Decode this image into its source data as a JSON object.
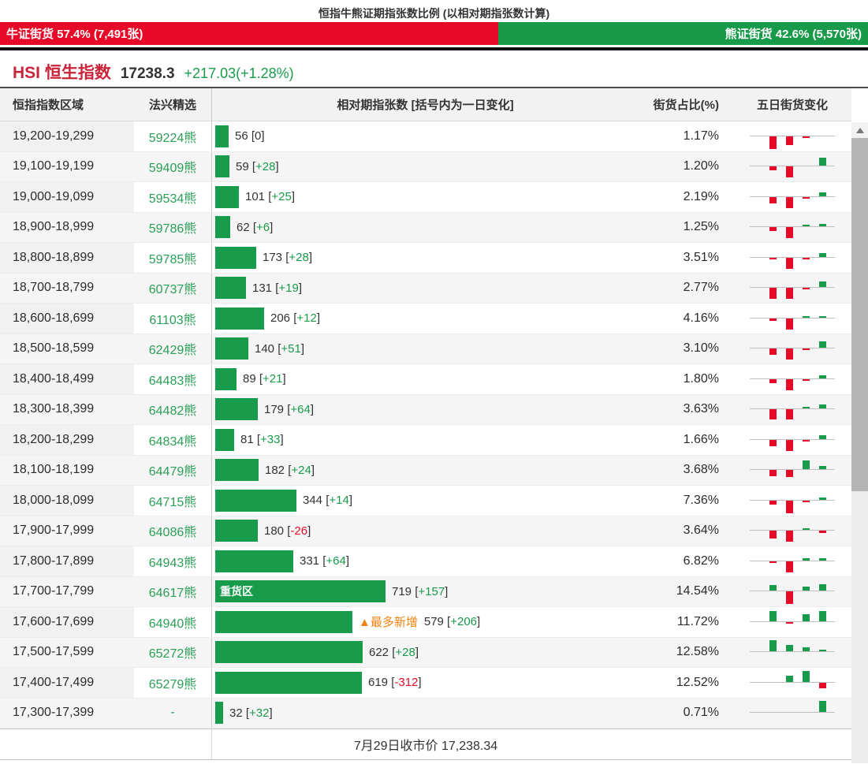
{
  "title": "恒指牛熊证期指张数比例 (以相对期指张数计算)",
  "ratio_bar": {
    "bull_label": "牛证街货 57.4% (7,491张)",
    "bear_label": "熊证街货 42.6% (5,570张)",
    "bull_pct": 57.4,
    "bear_pct": 42.6,
    "bull_color": "#e60a28",
    "bear_color": "#179a49"
  },
  "index_header": {
    "symbol": "HSI 恒生指数",
    "price": "17238.3",
    "change": "+217.03(+1.28%)",
    "change_color": "#189b4a"
  },
  "table": {
    "columns": [
      "恒指指数区域",
      "法兴精选",
      "相对期指张数 [括号内为一日变化]",
      "街货占比(%)",
      "五日街货变化"
    ],
    "rows": [
      {
        "range": "19,200-19,299",
        "code": "59224熊",
        "value": 56,
        "change": "0",
        "pct": "1.17%",
        "five_day": [
          0,
          -2.6,
          -1.8,
          -0.3,
          0
        ]
      },
      {
        "range": "19,100-19,199",
        "code": "59409熊",
        "value": 59,
        "change": "+28",
        "pct": "1.20%",
        "five_day": [
          0,
          -0.9,
          -2.4,
          0,
          1.6
        ]
      },
      {
        "range": "19,000-19,099",
        "code": "59534熊",
        "value": 101,
        "change": "+25",
        "pct": "2.19%",
        "five_day": [
          0,
          -1.4,
          -2.4,
          -0.3,
          0.9
        ]
      },
      {
        "range": "18,900-18,999",
        "code": "59786熊",
        "value": 62,
        "change": "+6",
        "pct": "1.25%",
        "five_day": [
          0,
          -0.9,
          -2.4,
          0.35,
          0.5
        ]
      },
      {
        "range": "18,800-18,899",
        "code": "59785熊",
        "value": 173,
        "change": "+28",
        "pct": "3.51%",
        "five_day": [
          0,
          -0.3,
          -2.4,
          -0.3,
          0.9
        ]
      },
      {
        "range": "18,700-18,799",
        "code": "60737熊",
        "value": 131,
        "change": "+19",
        "pct": "2.77%",
        "five_day": [
          0,
          -2.4,
          -2.4,
          -0.3,
          1.1
        ]
      },
      {
        "range": "18,600-18,699",
        "code": "61103熊",
        "value": 206,
        "change": "+12",
        "pct": "4.16%",
        "five_day": [
          0,
          -0.5,
          -2.4,
          0.35,
          0.35
        ]
      },
      {
        "range": "18,500-18,599",
        "code": "62429熊",
        "value": 140,
        "change": "+51",
        "pct": "3.10%",
        "five_day": [
          0,
          -1.4,
          -2.4,
          -0.25,
          1.3
        ]
      },
      {
        "range": "18,400-18,499",
        "code": "64483熊",
        "value": 89,
        "change": "+21",
        "pct": "1.80%",
        "five_day": [
          0,
          -0.9,
          -2.4,
          -0.25,
          0.6
        ]
      },
      {
        "range": "18,300-18,399",
        "code": "64482熊",
        "value": 179,
        "change": "+64",
        "pct": "3.63%",
        "five_day": [
          0,
          -2.1,
          -2.1,
          0.25,
          0.9
        ]
      },
      {
        "range": "18,200-18,299",
        "code": "64834熊",
        "value": 81,
        "change": "+33",
        "pct": "1.66%",
        "five_day": [
          0,
          -1.4,
          -2.4,
          -0.25,
          0.8
        ]
      },
      {
        "range": "18,100-18,199",
        "code": "64479熊",
        "value": 182,
        "change": "+24",
        "pct": "3.68%",
        "five_day": [
          0,
          -1.4,
          -1.5,
          1.9,
          0.6
        ]
      },
      {
        "range": "18,000-18,099",
        "code": "64715熊",
        "value": 344,
        "change": "+14",
        "pct": "7.36%",
        "five_day": [
          0,
          -0.9,
          -2.7,
          -0.25,
          0.5
        ]
      },
      {
        "range": "17,900-17,999",
        "code": "64086熊",
        "value": 180,
        "change": "-26",
        "pct": "3.64%",
        "five_day": [
          0,
          -1.7,
          -2.4,
          0.4,
          -0.5
        ]
      },
      {
        "range": "17,800-17,899",
        "code": "64943熊",
        "value": 331,
        "change": "+64",
        "pct": "6.82%",
        "five_day": [
          0,
          -0.4,
          -2.4,
          0.5,
          0.5
        ]
      },
      {
        "range": "17,700-17,799",
        "code": "64617熊",
        "value": 719,
        "change": "+157",
        "pct": "14.54%",
        "bar_label": "重货区",
        "five_day": [
          0,
          1.1,
          -2.7,
          0.9,
          1.3
        ]
      },
      {
        "range": "17,600-17,699",
        "code": "64940熊",
        "value": 579,
        "change": "+206",
        "pct": "11.72%",
        "annotation": "▲最多新增",
        "five_day": [
          0,
          2.2,
          -0.25,
          1.5,
          2.2
        ]
      },
      {
        "range": "17,500-17,599",
        "code": "65272熊",
        "value": 622,
        "change": "+28",
        "pct": "12.58%",
        "five_day": [
          0,
          2.4,
          1.3,
          0.8,
          0.25
        ]
      },
      {
        "range": "17,400-17,499",
        "code": "65279熊",
        "value": 619,
        "change": "-312",
        "pct": "12.52%",
        "five_day": [
          0,
          0,
          1.4,
          2.3,
          -1.2
        ]
      },
      {
        "range": "17,300-17,399",
        "code": "-",
        "value": 32,
        "change": "+32",
        "pct": "0.71%",
        "five_day": [
          0,
          0,
          0,
          0,
          2.3
        ]
      }
    ]
  },
  "footer": "7月29日收市价 17,238.34",
  "colors": {
    "green": "#189b4a",
    "red": "#e60a28",
    "orange": "#f0820f",
    "hsi_red": "#c9243a"
  },
  "chart_data": [
    {
      "type": "bar",
      "title": "恒指牛熊证期指张数比例 (以相对期指张数计算)",
      "categories": [
        "牛证街货",
        "熊证街货"
      ],
      "values": [
        57.4,
        42.6
      ],
      "labels": [
        "7,491张",
        "5,570张"
      ]
    },
    {
      "type": "bar",
      "title": "相对期指张数 [括号内为一日变化]",
      "categories": [
        "19,200-19,299",
        "19,100-19,199",
        "19,000-19,099",
        "18,900-18,999",
        "18,800-18,899",
        "18,700-18,799",
        "18,600-18,699",
        "18,500-18,599",
        "18,400-18,499",
        "18,300-18,399",
        "18,200-18,299",
        "18,100-18,199",
        "18,000-18,099",
        "17,900-17,999",
        "17,800-17,899",
        "17,700-17,799",
        "17,600-17,699",
        "17,500-17,599",
        "17,400-17,499",
        "17,300-17,399"
      ],
      "series": [
        {
          "name": "相对期指张数",
          "values": [
            56,
            59,
            101,
            62,
            173,
            131,
            206,
            140,
            89,
            179,
            81,
            182,
            344,
            180,
            331,
            719,
            579,
            622,
            619,
            32
          ]
        },
        {
          "name": "一日变化",
          "values": [
            0,
            28,
            25,
            6,
            28,
            19,
            12,
            51,
            21,
            64,
            33,
            24,
            14,
            -26,
            64,
            157,
            206,
            28,
            -312,
            32
          ]
        },
        {
          "name": "街货占比(%)",
          "values": [
            1.17,
            1.2,
            2.19,
            1.25,
            3.51,
            2.77,
            4.16,
            3.1,
            1.8,
            3.63,
            1.66,
            3.68,
            7.36,
            3.64,
            6.82,
            14.54,
            11.72,
            12.58,
            12.52,
            0.71
          ]
        }
      ],
      "annotations": [
        "重货区 @ 17,700-17,799",
        "▲最多新增 @ 17,600-17,699"
      ],
      "legend_position": "none",
      "grid": false
    }
  ]
}
